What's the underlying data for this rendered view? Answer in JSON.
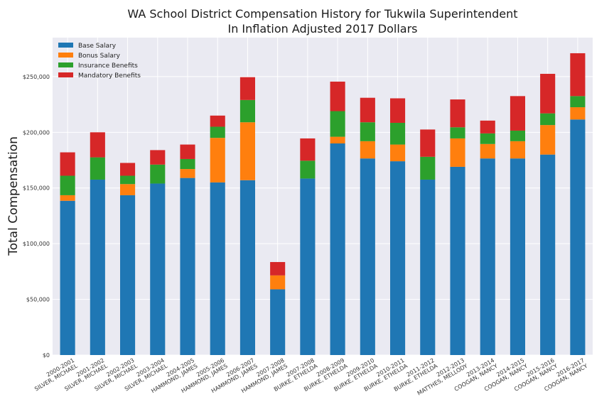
{
  "chart_data": {
    "type": "bar",
    "stacked": true,
    "title": "WA School District Compensation History for Tukwila Superintendent",
    "subtitle": "In Inflation Adjusted 2017 Dollars",
    "xlabel": "",
    "ylabel": "Total Compensation",
    "ylim": [
      0,
      285000
    ],
    "yticks": [
      0,
      50000,
      100000,
      150000,
      200000,
      250000
    ],
    "ytick_labels": [
      "$0",
      "$50,000",
      "$100,000",
      "$150,000",
      "$200,000",
      "$250,000"
    ],
    "grid": true,
    "legend_position": "top-left",
    "categories": [
      [
        "2000-2001",
        "SILVER, MICHAEL"
      ],
      [
        "2001-2002",
        "SILVER, MICHAEL"
      ],
      [
        "2002-2003",
        "SILVER, MICHAEL"
      ],
      [
        "2003-2004",
        "SILVER, MICHAEL"
      ],
      [
        "2004-2005",
        "HAMMOND, JAMES"
      ],
      [
        "2005-2006",
        "HAMMOND, JAMES"
      ],
      [
        "2006-2007",
        "HAMMOND, JAMES"
      ],
      [
        "2007-2008",
        "HAMMOND, JAMES"
      ],
      [
        "2007-2008",
        "BURKE, ETHELDA"
      ],
      [
        "2008-2009",
        "BURKE, ETHELDA"
      ],
      [
        "2009-2010",
        "BURKE, ETHELDA"
      ],
      [
        "2010-2011",
        "BURKE, ETHELDA"
      ],
      [
        "2011-2012",
        "BURKE, ETHELDA"
      ],
      [
        "2012-2013",
        "MATTHES, MELLODY"
      ],
      [
        "2013-2014",
        "COOGAN, NANCY"
      ],
      [
        "2014-2015",
        "COOGAN, NANCY"
      ],
      [
        "2015-2016",
        "COOGAN, NANCY"
      ],
      [
        "2016-2017",
        "COOGAN, NANCY"
      ]
    ],
    "series": [
      {
        "name": "Base Salary",
        "color": "#1f77b4",
        "values": [
          138500,
          157500,
          143500,
          154000,
          159000,
          155000,
          157000,
          59000,
          158500,
          190000,
          176500,
          174000,
          157500,
          169000,
          176500,
          176500,
          180000,
          211500
        ]
      },
      {
        "name": "Bonus Salary",
        "color": "#ff7f0e",
        "values": [
          5000,
          0,
          10000,
          0,
          8000,
          40000,
          52000,
          12500,
          0,
          6000,
          15500,
          15000,
          0,
          25500,
          13000,
          15500,
          26500,
          11000
        ]
      },
      {
        "name": "Insurance Benefits",
        "color": "#2ca02c",
        "values": [
          17500,
          20000,
          7500,
          17000,
          9000,
          10000,
          20000,
          0,
          16000,
          23000,
          17000,
          19500,
          20500,
          10000,
          9500,
          9500,
          10500,
          10000
        ]
      },
      {
        "name": "Mandatory Benefits",
        "color": "#d62728",
        "values": [
          21000,
          22500,
          11500,
          13000,
          13000,
          10000,
          20500,
          12000,
          20000,
          26500,
          22000,
          22000,
          24500,
          25000,
          11500,
          31000,
          35500,
          38500
        ]
      }
    ]
  }
}
